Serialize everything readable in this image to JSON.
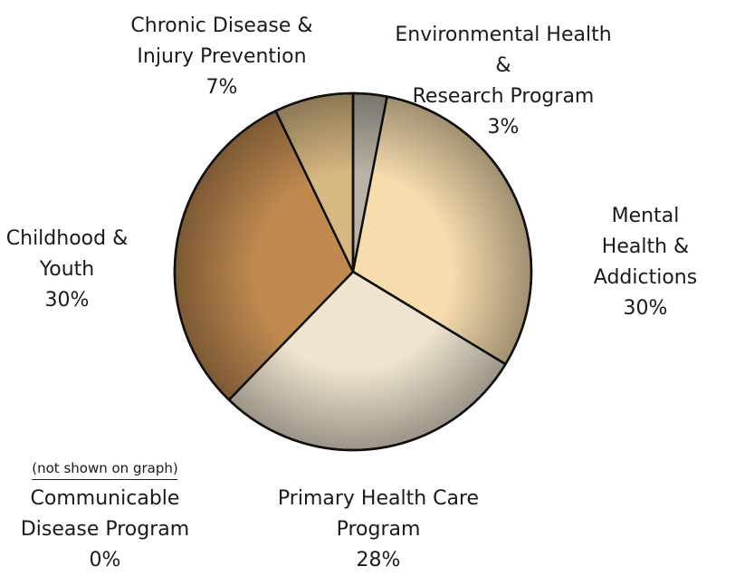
{
  "chart_data": {
    "type": "pie",
    "categories": [
      "Environmental Health &\nResearch Program",
      "Mental Health &\nAddictions",
      "Primary Health Care\nProgram",
      "Childhood &\nYouth",
      "Chronic Disease &\nInjury Prevention",
      "Communicable\nDisease Program"
    ],
    "values": [
      3,
      30,
      28,
      30,
      7,
      0
    ],
    "value_labels": [
      "3%",
      "30%",
      "28%",
      "30%",
      "7%",
      "0%"
    ],
    "colors": [
      "#b9b2a6",
      "#f7dcae",
      "#eee4d0",
      "#bf8950",
      "#d8b882",
      "#ffffff"
    ],
    "note": "(not shown on graph)"
  }
}
